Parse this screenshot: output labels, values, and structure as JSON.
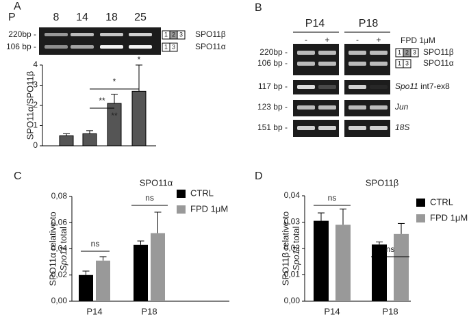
{
  "panel_labels": [
    "A",
    "B",
    "C",
    "D"
  ],
  "gel_a": {
    "row_label": "P",
    "lanes": [
      "8",
      "14",
      "18",
      "25"
    ],
    "bands": [
      "220bp -",
      "106 bp -"
    ],
    "isoforms": [
      {
        "exons": [
          "1",
          "2",
          "3"
        ],
        "name": "SPO11β"
      },
      {
        "exons": [
          "1",
          "3"
        ],
        "name": "SPO11α"
      }
    ]
  },
  "gel_b": {
    "groups": [
      "P14",
      "P18"
    ],
    "treatment": [
      "-",
      "+",
      "-",
      "+"
    ],
    "treatment_label": "FPD 1μM",
    "bands": [
      "220bp -",
      "106 bp -",
      "117 bp -",
      "123 bp -",
      "151 bp -"
    ],
    "isoforms": [
      {
        "exons": [
          "1",
          "2",
          "3"
        ],
        "name": "SPO11β"
      },
      {
        "exons": [
          "1",
          "3"
        ],
        "name": "SPO11α"
      }
    ],
    "targets": [
      {
        "gene": "Spo11",
        "suffix": " int7-ex8"
      },
      {
        "gene": "Jun",
        "suffix": ""
      },
      {
        "gene": "18S",
        "suffix": ""
      }
    ]
  },
  "chart_data": [
    {
      "type": "bar",
      "ylabel": {
        "line1": "SPO11α/SPO11β"
      },
      "categories": [
        null,
        null,
        null,
        null
      ],
      "values": [
        0.5,
        0.6,
        2.1,
        2.7
      ],
      "errors": [
        0.1,
        0.15,
        0.45,
        1.3
      ],
      "color": "#555555",
      "ylim": [
        0,
        4
      ],
      "yticks": [
        0,
        1,
        2,
        3,
        4
      ],
      "annotations": [
        "**",
        "*",
        "**",
        "*"
      ]
    },
    {
      "type": "grouped_bar",
      "title": "SPO11α",
      "ylabel": {
        "line1": "SPO11α relative to",
        "gene": "Spo11",
        "rest": " total"
      },
      "categories": [
        "P14",
        "P18"
      ],
      "series": [
        {
          "name": "CTRL",
          "color": "#000000",
          "values": [
            0.02,
            0.043
          ],
          "errors": [
            0.003,
            0.003
          ]
        },
        {
          "name": "FPD 1μM",
          "color": "#999999",
          "values": [
            0.031,
            0.052
          ],
          "errors": [
            0.003,
            0.016
          ]
        }
      ],
      "ylim": [
        0,
        0.08
      ],
      "yticks": [
        {
          "value": 0,
          "label": "0,00"
        },
        {
          "value": 0.02,
          "label": "0,02"
        },
        {
          "value": 0.04,
          "label": "0,04"
        },
        {
          "value": 0.06,
          "label": "0,06"
        },
        {
          "value": 0.08,
          "label": "0,08"
        }
      ],
      "annotations": [
        "ns",
        "ns"
      ]
    },
    {
      "type": "grouped_bar",
      "title": "SPO11β",
      "ylabel": {
        "line1": "SPO11β relative to",
        "gene": "Spo11",
        "rest": " total"
      },
      "categories": [
        "P14",
        "P18"
      ],
      "series": [
        {
          "name": "CTRL",
          "color": "#000000",
          "values": [
            0.0305,
            0.0215
          ],
          "errors": [
            0.003,
            0.001
          ]
        },
        {
          "name": "FPD 1μM",
          "color": "#999999",
          "values": [
            0.029,
            0.0255
          ],
          "errors": [
            0.006,
            0.004
          ]
        }
      ],
      "ylim": [
        0,
        0.04
      ],
      "yticks": [
        {
          "value": 0,
          "label": "0,00"
        },
        {
          "value": 0.01,
          "label": "0,01"
        },
        {
          "value": 0.02,
          "label": "0,02"
        },
        {
          "value": 0.03,
          "label": "0,03"
        },
        {
          "value": 0.04,
          "label": "0,04"
        }
      ],
      "annotations": [
        "ns",
        "ns"
      ]
    }
  ]
}
